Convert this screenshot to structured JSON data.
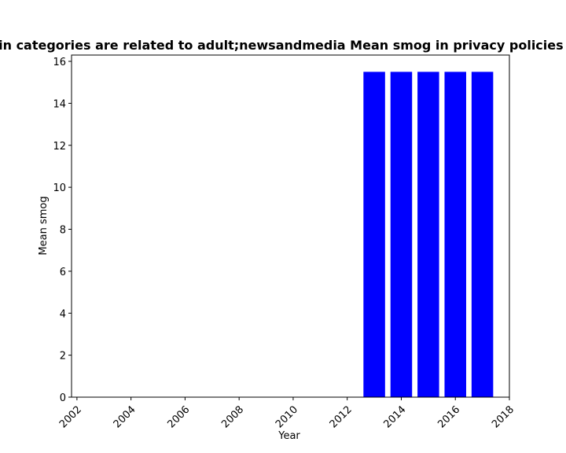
{
  "chart_data": {
    "type": "bar",
    "title": "Domain categories are related to adult;newsandmedia Mean smog in privacy policies by year",
    "xlabel": "Year",
    "ylabel": "Mean smog",
    "x": [
      2013,
      2014,
      2015,
      2016,
      2017
    ],
    "values": [
      15.5,
      15.5,
      15.5,
      15.5,
      15.5
    ],
    "xlim": [
      2001.8,
      2018.0
    ],
    "ylim": [
      0,
      16.3
    ],
    "xticks": [
      "2002",
      "2004",
      "2006",
      "2008",
      "2010",
      "2012",
      "2014",
      "2016",
      "2018"
    ],
    "yticks": [
      "0",
      "2",
      "4",
      "6",
      "8",
      "10",
      "12",
      "14",
      "16"
    ],
    "bar_color": "#0000ff",
    "grid": false,
    "legend": "none"
  }
}
